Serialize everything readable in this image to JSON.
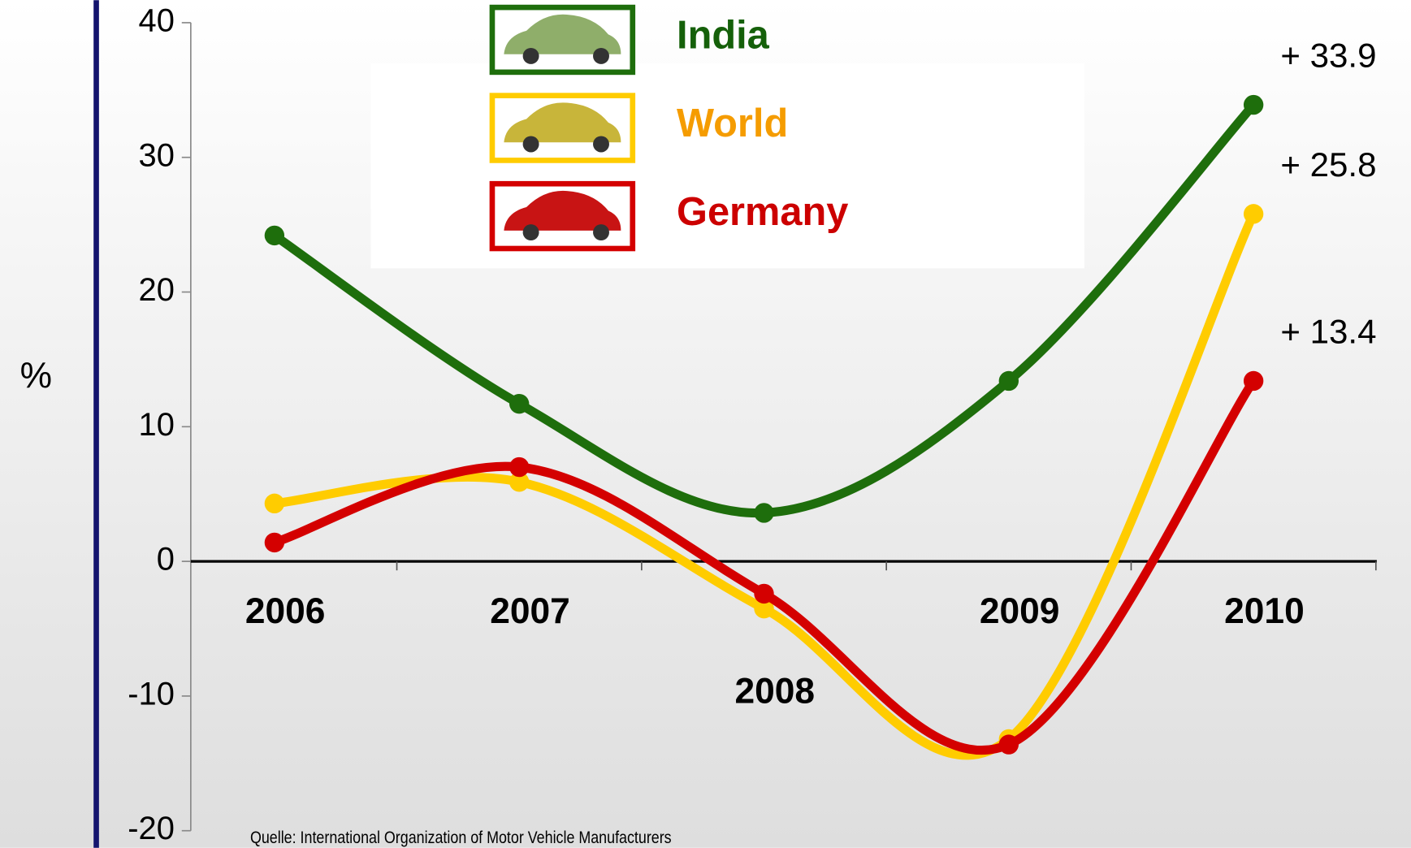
{
  "chart_data": {
    "type": "line",
    "y_label": "%",
    "source": "Quelle: International Organization of Motor Vehicle Manufacturers",
    "categories": [
      "2006",
      "2007",
      "2008",
      "2009",
      "2010"
    ],
    "ylim": [
      -20,
      40
    ],
    "yticks": [
      -20,
      -10,
      0,
      10,
      20,
      30,
      40
    ],
    "series": [
      {
        "name": "India",
        "color": "#1e6e0c",
        "label_color": "#15600a",
        "values": [
          24.2,
          11.7,
          3.6,
          13.4,
          33.9
        ],
        "value_labels": [
          null,
          null,
          null,
          null,
          "+ 33.9"
        ]
      },
      {
        "name": "World",
        "color": "#ffcc00",
        "label_color": "#f59c00",
        "values": [
          4.3,
          5.9,
          -3.5,
          -13.2,
          25.8
        ],
        "value_labels": [
          null,
          null,
          null,
          null,
          "+ 25.8"
        ]
      },
      {
        "name": "Germany",
        "color": "#d40000",
        "label_color": "#cc0000",
        "values": [
          1.4,
          7.0,
          -2.4,
          -13.6,
          13.4
        ],
        "value_labels": [
          null,
          null,
          null,
          null,
          "+ 13.4"
        ]
      }
    ]
  }
}
